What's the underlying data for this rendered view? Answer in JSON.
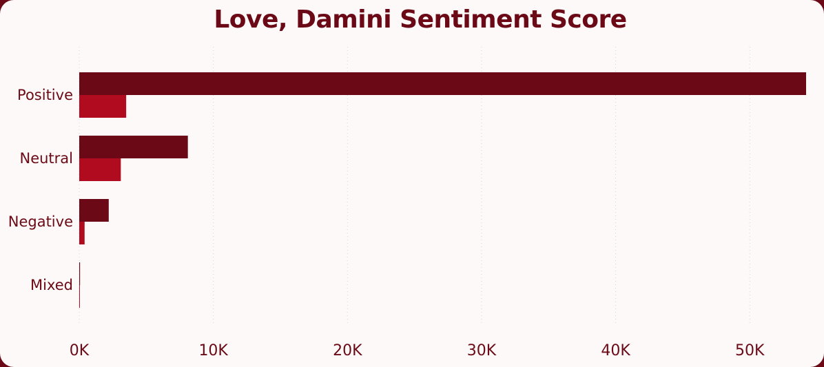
{
  "chart_data": {
    "type": "bar",
    "orientation": "horizontal",
    "title": "Love, Damini Sentiment Score",
    "categories": [
      "Positive",
      "Neutral",
      "Negative",
      "Mixed"
    ],
    "series": [
      {
        "color": "#6b0a16",
        "values": [
          54200,
          8100,
          2200,
          60
        ]
      },
      {
        "color": "#b00b1e",
        "values": [
          3500,
          3100,
          400,
          20
        ]
      }
    ],
    "xlim": [
      0,
      54200
    ],
    "xticks": [
      {
        "value": 0,
        "label": "0K"
      },
      {
        "value": 10000,
        "label": "10K"
      },
      {
        "value": 20000,
        "label": "20K"
      },
      {
        "value": 30000,
        "label": "30K"
      },
      {
        "value": 40000,
        "label": "40K"
      },
      {
        "value": 50000,
        "label": "50K"
      }
    ],
    "grid": true,
    "legend": "none"
  }
}
